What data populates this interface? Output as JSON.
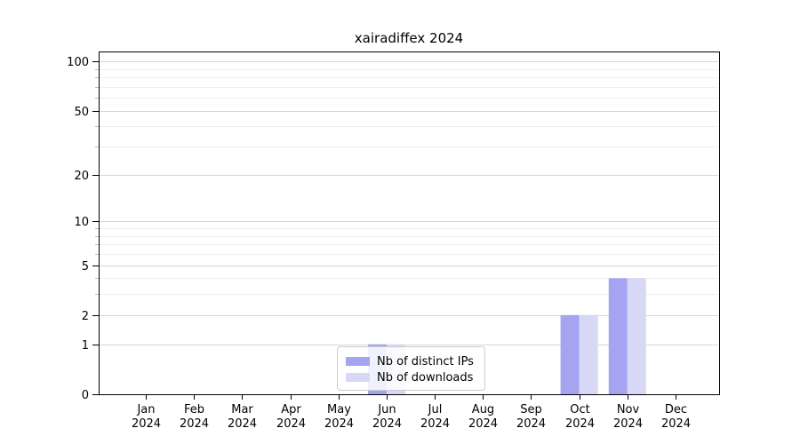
{
  "title": "xairadiffex 2024",
  "chart_data": {
    "type": "bar",
    "title": "xairadiffex 2024",
    "scale": "log1p",
    "categories": [
      "Jan 2024",
      "Feb 2024",
      "Mar 2024",
      "Apr 2024",
      "May 2024",
      "Jun 2024",
      "Jul 2024",
      "Aug 2024",
      "Sep 2024",
      "Oct 2024",
      "Nov 2024",
      "Dec 2024"
    ],
    "series": [
      {
        "name": "Nb of distinct IPs",
        "color": "#a4a4f1",
        "values": [
          0,
          0,
          0,
          0,
          0,
          1,
          0,
          0,
          0,
          2,
          4,
          0
        ]
      },
      {
        "name": "Nb of downloads",
        "color": "#d7d7f6",
        "values": [
          0,
          0,
          0,
          0,
          0,
          1,
          0,
          0,
          0,
          2,
          4,
          0
        ]
      }
    ],
    "xlabel": "",
    "ylabel": "",
    "ylim": [
      0,
      115
    ],
    "yticks_major": [
      0,
      1,
      2,
      5,
      10,
      20,
      50,
      100
    ],
    "yticks_minor": [
      3,
      4,
      6,
      7,
      8,
      9,
      30,
      40,
      60,
      70,
      80,
      90
    ],
    "grid": "both",
    "legend_position": "lower center"
  },
  "legend": {
    "items": [
      {
        "label": "Nb of distinct IPs",
        "color": "#a4a4f1"
      },
      {
        "label": "Nb of downloads",
        "color": "#d7d7f6"
      }
    ]
  },
  "colors": {
    "background": "#ffffff",
    "spine": "#000000",
    "grid_major": "#d6d6d6",
    "grid_minor": "#eeeeee",
    "tick_major": "#000000",
    "tick_minor": "#bbbbbb",
    "text": "#000000",
    "bar_ips": "#a4a4f1",
    "bar_downloads": "#d7d7f6"
  }
}
